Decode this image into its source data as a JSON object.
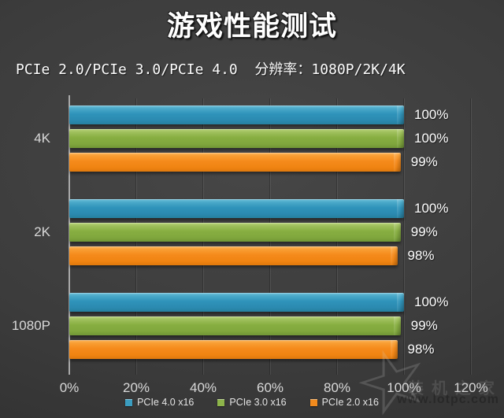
{
  "title": "游戏性能测试",
  "subtitle": "PCIe 2.0/PCIe 3.0/PCIe 4.0  分辨率：1080P/2K/4K",
  "chart_data": {
    "type": "bar",
    "orientation": "horizontal",
    "title": "游戏性能测试",
    "subtitle": "PCIe 2.0/PCIe 3.0/PCIe 4.0  分辨率：1080P/2K/4K",
    "categories": [
      "4K",
      "2K",
      "1080P"
    ],
    "series": [
      {
        "name": "PCIe 4.0 x16",
        "color": "#2f93ba",
        "values": [
          100,
          100,
          100
        ]
      },
      {
        "name": "PCIe 3.0 x16",
        "color": "#87ae41",
        "values": [
          100,
          99,
          99
        ]
      },
      {
        "name": "PCIe 2.0 x16",
        "color": "#f58a1b",
        "values": [
          99,
          98,
          98
        ]
      }
    ],
    "value_suffix": "%",
    "xlim": [
      0,
      120
    ],
    "x_ticks": [
      "0%",
      "20%",
      "40%",
      "60%",
      "80%",
      "100%",
      "120%"
    ],
    "grid": "vertical-faint",
    "legend_position": "bottom"
  },
  "watermark": {
    "star_icon": "☆",
    "site_name": "装机之家",
    "site_url": "www.lotpc.com"
  }
}
